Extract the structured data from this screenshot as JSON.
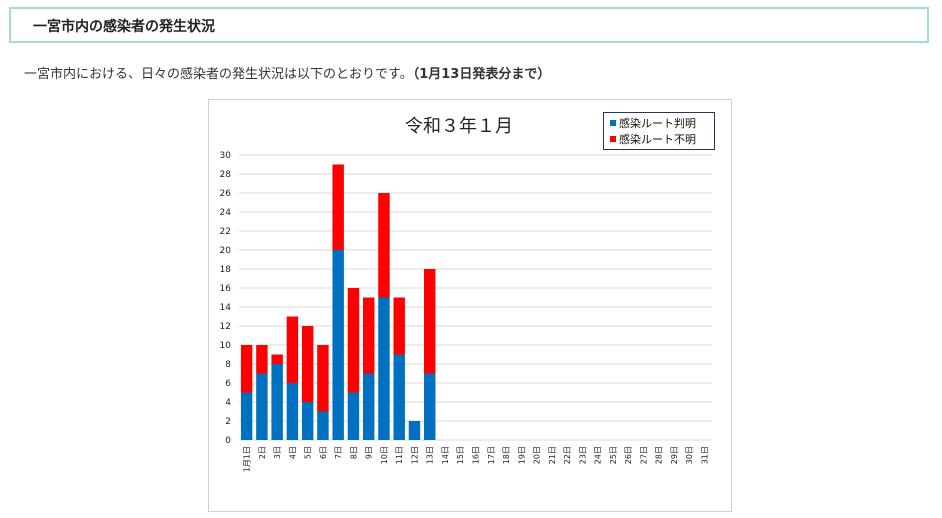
{
  "heading": "一宮市内の感染者の発生状況",
  "intro": {
    "text": "一宮市内における、日々の感染者の発生状況は以下のとおりです。",
    "bold": "（1月13日発表分まで）"
  },
  "colors": {
    "known": "#0070c0",
    "unknown": "#ff0000",
    "grid": "#d9d9d9",
    "frame": "#1f3864"
  },
  "chart_data": {
    "type": "bar",
    "stacked": true,
    "title": "令和３年１月",
    "categories": [
      "1月1日",
      "2日",
      "3日",
      "4日",
      "5日",
      "6日",
      "7日",
      "8日",
      "9日",
      "10日",
      "11日",
      "12日",
      "13日",
      "14日",
      "15日",
      "16日",
      "17日",
      "18日",
      "19日",
      "20日",
      "21日",
      "22日",
      "23日",
      "24日",
      "25日",
      "26日",
      "27日",
      "28日",
      "29日",
      "30日",
      "31日"
    ],
    "series": [
      {
        "name": "感染ルート判明",
        "color": "#0070c0",
        "values": [
          5,
          7,
          8,
          6,
          4,
          3,
          20,
          5,
          7,
          15,
          9,
          2,
          7,
          0,
          0,
          0,
          0,
          0,
          0,
          0,
          0,
          0,
          0,
          0,
          0,
          0,
          0,
          0,
          0,
          0,
          0
        ]
      },
      {
        "name": "感染ルート不明",
        "color": "#ff0000",
        "values": [
          5,
          3,
          1,
          7,
          8,
          7,
          9,
          11,
          8,
          11,
          6,
          0,
          11,
          0,
          0,
          0,
          0,
          0,
          0,
          0,
          0,
          0,
          0,
          0,
          0,
          0,
          0,
          0,
          0,
          0,
          0
        ]
      }
    ],
    "ylim": [
      0,
      30
    ],
    "yticks": [
      0,
      2,
      4,
      6,
      8,
      10,
      12,
      14,
      16,
      18,
      20,
      22,
      24,
      26,
      28,
      30
    ],
    "grid": true,
    "legend_position": "top-right"
  }
}
